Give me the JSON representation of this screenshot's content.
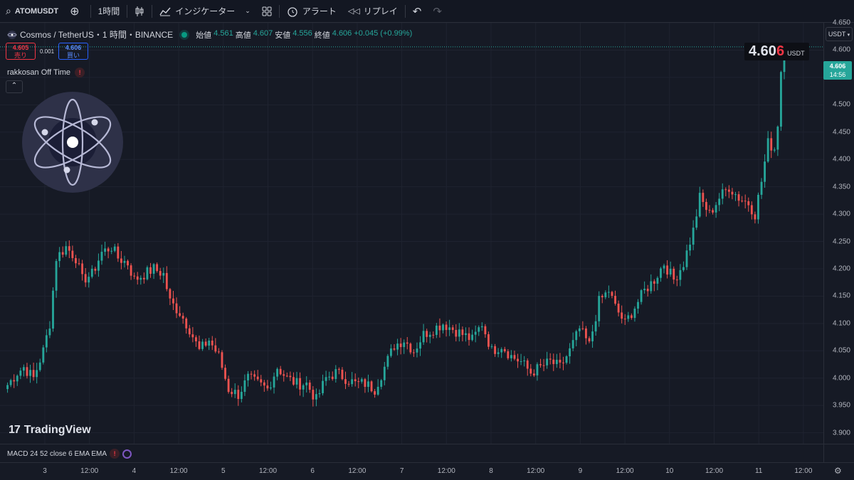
{
  "toolbar": {
    "symbol": "ATOMUSDT",
    "interval": "1時間",
    "indicators_label": "インジケーター",
    "alert_label": "アラート",
    "replay_label": "リプレイ"
  },
  "legend": {
    "title": "Cosmos / TetherUS・1 時間・BINANCE",
    "open_label": "始値",
    "open": "4.561",
    "high_label": "高値",
    "high": "4.607",
    "low_label": "安値",
    "low": "4.556",
    "close_label": "終値",
    "close": "4.606",
    "change": "+0.045 (+0.99%)"
  },
  "trade": {
    "bid_price": "4.605",
    "bid_label": "売り",
    "spread": "0.001",
    "ask_price": "4.606",
    "ask_label": "買い"
  },
  "indicator": {
    "name": "rakkosan Off Time",
    "warn": "!"
  },
  "macd": {
    "name": "MACD 24 52 close 6 EMA EMA",
    "warn": "!"
  },
  "brand": {
    "name": "TradingView",
    "mark": "17"
  },
  "price_badge": {
    "main": "4.60",
    "last_digit": "6",
    "currency": "USDT"
  },
  "currency_select": "USDT",
  "current_price_tag": {
    "price": "4.606",
    "countdown": "14:56"
  },
  "colors": {
    "up": "#26a69a",
    "down": "#ef5350",
    "background": "#161a25"
  },
  "price_axis": [
    "4.650",
    "4.600",
    "4.550",
    "4.500",
    "4.450",
    "4.400",
    "4.350",
    "4.300",
    "4.250",
    "4.200",
    "4.150",
    "4.100",
    "4.050",
    "4.000",
    "3.950",
    "3.900"
  ],
  "time_axis": [
    "3",
    "12:00",
    "4",
    "12:00",
    "5",
    "12:00",
    "6",
    "12:00",
    "7",
    "12:00",
    "8",
    "12:00",
    "9",
    "12:00",
    "10",
    "12:00",
    "11",
    "12:00"
  ],
  "chart_data": {
    "type": "candlestick",
    "interval": "1h",
    "ylim": [
      3.88,
      4.65
    ],
    "anchors": [
      [
        0,
        3.98
      ],
      [
        4,
        4.01
      ],
      [
        6,
        4.02
      ],
      [
        9,
        4.0
      ],
      [
        12,
        4.05
      ],
      [
        14,
        4.1
      ],
      [
        16,
        4.22
      ],
      [
        19,
        4.24
      ],
      [
        22,
        4.22
      ],
      [
        24,
        4.18
      ],
      [
        27,
        4.19
      ],
      [
        30,
        4.23
      ],
      [
        33,
        4.24
      ],
      [
        35,
        4.22
      ],
      [
        38,
        4.21
      ],
      [
        40,
        4.18
      ],
      [
        43,
        4.19
      ],
      [
        46,
        4.2
      ],
      [
        49,
        4.19
      ],
      [
        51,
        4.14
      ],
      [
        54,
        4.12
      ],
      [
        57,
        4.09
      ],
      [
        60,
        4.05
      ],
      [
        63,
        4.07
      ],
      [
        66,
        4.04
      ],
      [
        69,
        3.98
      ],
      [
        72,
        3.97
      ],
      [
        75,
        4.0
      ],
      [
        78,
        3.99
      ],
      [
        81,
        3.98
      ],
      [
        84,
        4.02
      ],
      [
        87,
        4.0
      ],
      [
        90,
        3.99
      ],
      [
        93,
        3.99
      ],
      [
        96,
        3.96
      ],
      [
        99,
        4.0
      ],
      [
        102,
        4.01
      ],
      [
        105,
        4.0
      ],
      [
        108,
        3.99
      ],
      [
        111,
        3.99
      ],
      [
        114,
        3.98
      ],
      [
        117,
        4.02
      ],
      [
        120,
        4.06
      ],
      [
        123,
        4.07
      ],
      [
        126,
        4.05
      ],
      [
        129,
        4.08
      ],
      [
        132,
        4.09
      ],
      [
        135,
        4.1
      ],
      [
        138,
        4.09
      ],
      [
        141,
        4.08
      ],
      [
        144,
        4.07
      ],
      [
        147,
        4.1
      ],
      [
        150,
        4.05
      ],
      [
        153,
        4.06
      ],
      [
        156,
        4.04
      ],
      [
        159,
        4.03
      ],
      [
        162,
        4.01
      ],
      [
        165,
        4.02
      ],
      [
        168,
        4.03
      ],
      [
        171,
        4.02
      ],
      [
        174,
        4.05
      ],
      [
        177,
        4.09
      ],
      [
        180,
        4.06
      ],
      [
        183,
        4.14
      ],
      [
        186,
        4.16
      ],
      [
        188,
        4.13
      ],
      [
        191,
        4.1
      ],
      [
        194,
        4.13
      ],
      [
        197,
        4.16
      ],
      [
        200,
        4.18
      ],
      [
        203,
        4.21
      ],
      [
        206,
        4.18
      ],
      [
        209,
        4.21
      ],
      [
        212,
        4.27
      ],
      [
        214,
        4.33
      ],
      [
        217,
        4.3
      ],
      [
        220,
        4.33
      ],
      [
        223,
        4.35
      ],
      [
        226,
        4.33
      ],
      [
        229,
        4.32
      ],
      [
        231,
        4.3
      ],
      [
        233,
        4.36
      ],
      [
        235,
        4.43
      ],
      [
        237,
        4.42
      ],
      [
        238,
        4.46
      ],
      [
        239,
        4.56
      ],
      [
        240,
        4.606
      ]
    ]
  }
}
